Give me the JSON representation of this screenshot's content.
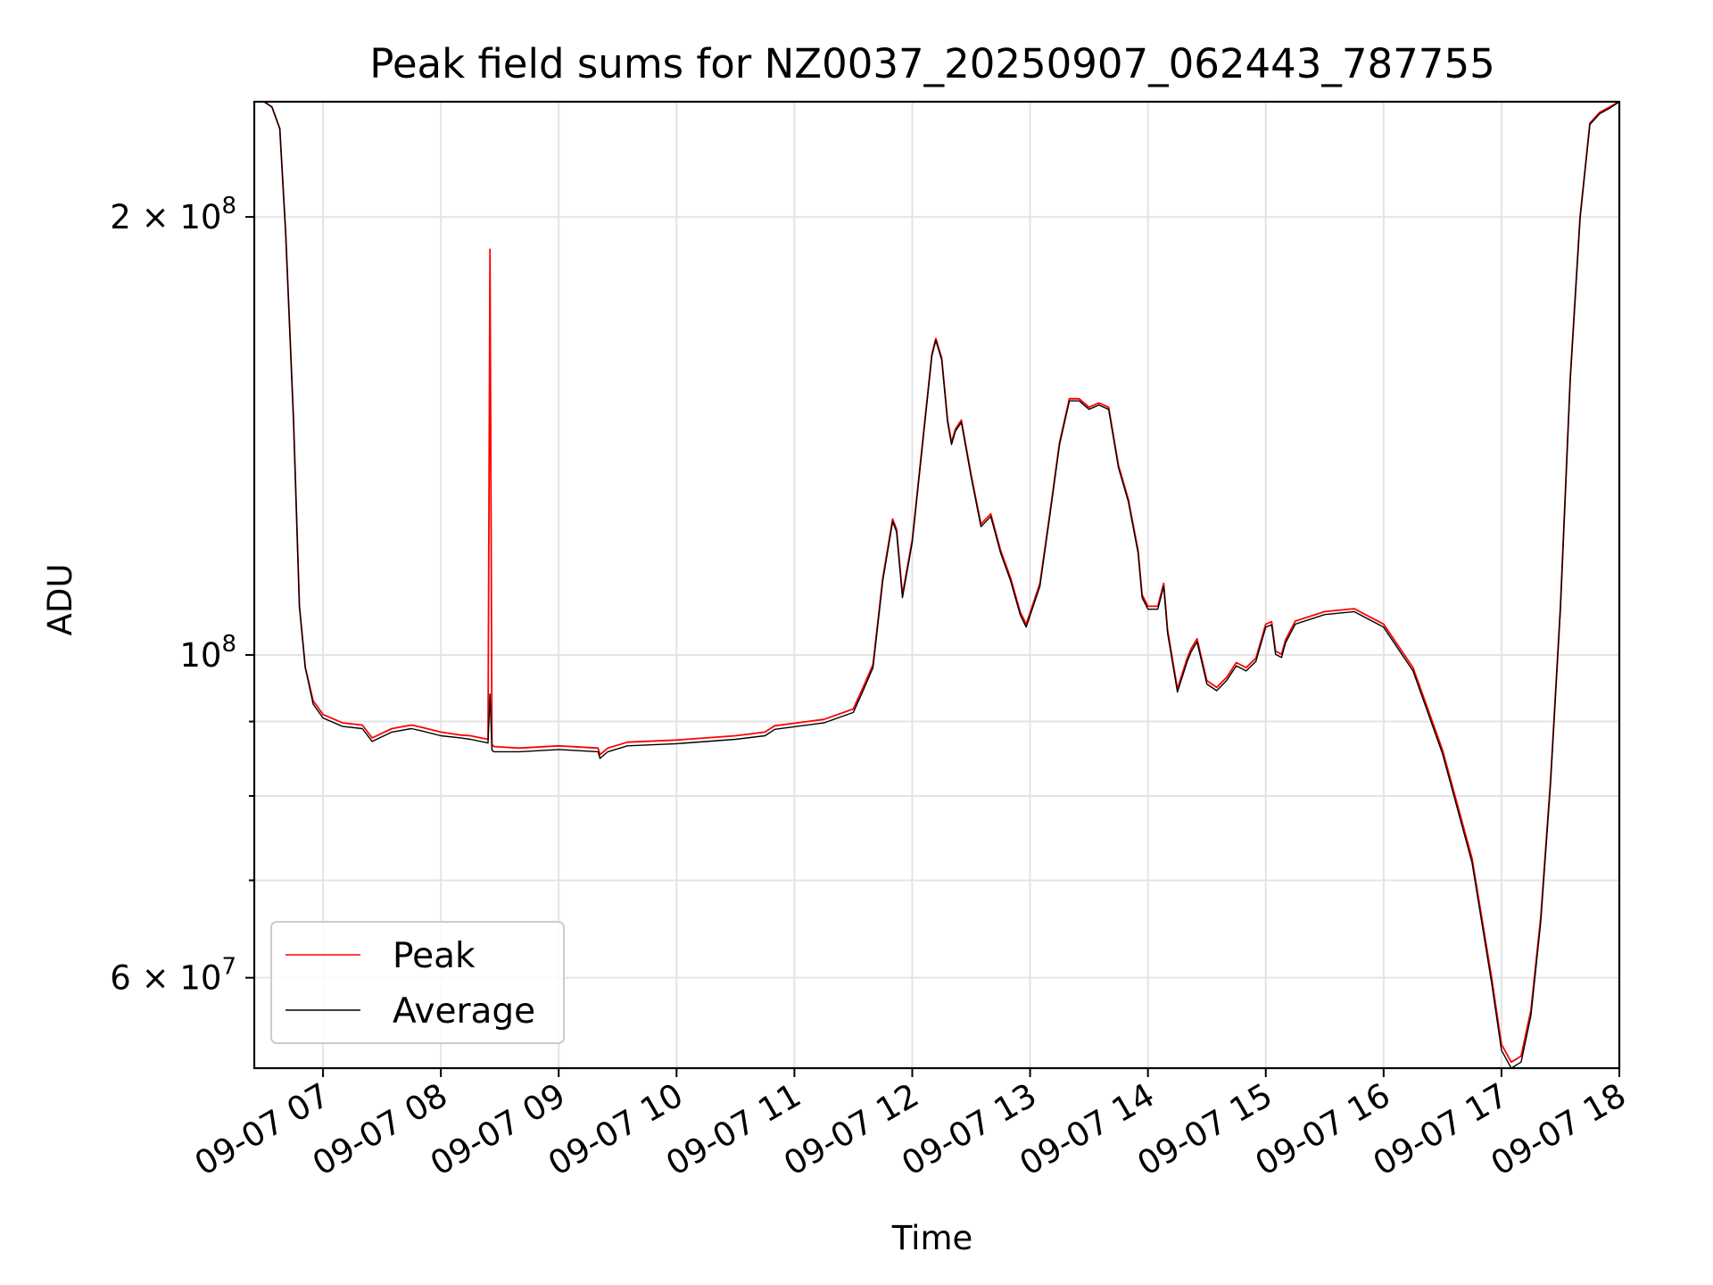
{
  "chart_data": {
    "type": "line",
    "title": "Peak field sums for NZ0037_20250907_062443_787755",
    "xlabel": "Time",
    "ylabel": "ADU",
    "yscale": "log",
    "ylim": [
      52000000,
      240000000
    ],
    "xlim": [
      "09-07 06:25",
      "09-07 18:00"
    ],
    "grid": true,
    "legend_position": "lower-left",
    "x_ticks": [
      "09-07 07",
      "09-07 08",
      "09-07 09",
      "09-07 10",
      "09-07 11",
      "09-07 12",
      "09-07 13",
      "09-07 14",
      "09-07 15",
      "09-07 16",
      "09-07 17",
      "09-07 18"
    ],
    "y_ticks": [
      {
        "value": 200000000,
        "mantissa": "2",
        "exponent": "8"
      },
      {
        "value": 100000000,
        "mantissa": "",
        "exponent": "8"
      },
      {
        "value": 60000000,
        "mantissa": "6",
        "exponent": "7"
      }
    ],
    "series": [
      {
        "name": "Peak",
        "color": "#ff0000",
        "x": [
          "09-07 06:25",
          "09-07 06:30",
          "09-07 06:34",
          "09-07 06:38",
          "09-07 06:41",
          "09-07 06:45",
          "09-07 06:48",
          "09-07 06:51",
          "09-07 06:55",
          "09-07 07:00",
          "09-07 07:10",
          "09-07 07:20",
          "09-07 07:25",
          "09-07 07:35",
          "09-07 07:45",
          "09-07 07:50",
          "09-07 08:00",
          "09-07 08:10",
          "09-07 08:15",
          "09-07 08:24",
          "09-07 08:25",
          "09-07 08:26",
          "09-07 08:27",
          "09-07 08:40",
          "09-07 09:00",
          "09-07 09:20",
          "09-07 09:21",
          "09-07 09:25",
          "09-07 09:35",
          "09-07 10:00",
          "09-07 10:30",
          "09-07 10:45",
          "09-07 10:50",
          "09-07 11:15",
          "09-07 11:30",
          "09-07 11:35",
          "09-07 11:40",
          "09-07 11:45",
          "09-07 11:50",
          "09-07 11:52",
          "09-07 11:55",
          "09-07 12:00",
          "09-07 12:10",
          "09-07 12:12",
          "09-07 12:15",
          "09-07 12:18",
          "09-07 12:20",
          "09-07 12:22",
          "09-07 12:25",
          "09-07 12:30",
          "09-07 12:35",
          "09-07 12:40",
          "09-07 12:45",
          "09-07 12:50",
          "09-07 12:55",
          "09-07 12:58",
          "09-07 13:05",
          "09-07 13:10",
          "09-07 13:15",
          "09-07 13:20",
          "09-07 13:25",
          "09-07 13:30",
          "09-07 13:35",
          "09-07 13:40",
          "09-07 13:45",
          "09-07 13:50",
          "09-07 13:55",
          "09-07 13:57",
          "09-07 14:00",
          "09-07 14:05",
          "09-07 14:08",
          "09-07 14:10",
          "09-07 14:15",
          "09-07 14:20",
          "09-07 14:22",
          "09-07 14:25",
          "09-07 14:30",
          "09-07 14:35",
          "09-07 14:40",
          "09-07 14:45",
          "09-07 14:50",
          "09-07 14:55",
          "09-07 15:00",
          "09-07 15:03",
          "09-07 15:05",
          "09-07 15:08",
          "09-07 15:10",
          "09-07 15:15",
          "09-07 15:30",
          "09-07 15:45",
          "09-07 16:00",
          "09-07 16:15",
          "09-07 16:30",
          "09-07 16:45",
          "09-07 16:55",
          "09-07 17:00",
          "09-07 17:05",
          "09-07 17:10",
          "09-07 17:15",
          "09-07 17:20",
          "09-07 17:25",
          "09-07 17:30",
          "09-07 17:35",
          "09-07 17:40",
          "09-07 17:45",
          "09-07 17:50",
          "09-07 17:55",
          "09-07 18:00"
        ],
        "y": [
          240000000,
          240000000,
          238000000,
          230000000,
          195000000,
          145000000,
          108000000,
          98000000,
          93000000,
          91000000,
          89800000,
          89500000,
          87700000,
          89000000,
          89500000,
          89200000,
          88500000,
          88100000,
          88000000,
          87500000,
          190000000,
          86800000,
          86500000,
          86300000,
          86600000,
          86300000,
          85400000,
          86300000,
          87100000,
          87400000,
          88000000,
          88500000,
          89400000,
          90300000,
          91800000,
          95000000,
          98500000,
          113000000,
          124000000,
          122000000,
          110000000,
          120000000,
          161000000,
          165000000,
          160000000,
          145000000,
          140000000,
          143000000,
          145000000,
          133000000,
          123000000,
          125000000,
          118000000,
          113000000,
          107000000,
          105000000,
          112000000,
          125000000,
          140000000,
          150000000,
          150000000,
          148000000,
          149000000,
          148000000,
          135000000,
          128000000,
          118000000,
          110000000,
          108000000,
          108000000,
          112000000,
          104000000,
          94800000,
          99500000,
          101000000,
          102600000,
          96000000,
          95000000,
          96500000,
          98800000,
          98000000,
          99500000,
          105000000,
          105400000,
          100600000,
          100100000,
          102400000,
          105500000,
          107100000,
          107600000,
          105000000,
          98000000,
          86000000,
          72500000,
          60000000,
          54000000,
          52500000,
          53000000,
          57000000,
          66000000,
          82000000,
          108000000,
          155000000,
          200000000,
          232000000,
          236000000,
          238000000,
          240000000
        ]
      },
      {
        "name": "Average",
        "color": "#000000",
        "x": [
          "09-07 06:25",
          "09-07 06:30",
          "09-07 06:34",
          "09-07 06:38",
          "09-07 06:41",
          "09-07 06:45",
          "09-07 06:48",
          "09-07 06:51",
          "09-07 06:55",
          "09-07 07:00",
          "09-07 07:10",
          "09-07 07:20",
          "09-07 07:25",
          "09-07 07:35",
          "09-07 07:45",
          "09-07 07:50",
          "09-07 08:00",
          "09-07 08:10",
          "09-07 08:15",
          "09-07 08:24",
          "09-07 08:25",
          "09-07 08:26",
          "09-07 08:27",
          "09-07 08:40",
          "09-07 09:00",
          "09-07 09:20",
          "09-07 09:21",
          "09-07 09:25",
          "09-07 09:35",
          "09-07 10:00",
          "09-07 10:30",
          "09-07 10:45",
          "09-07 10:50",
          "09-07 11:15",
          "09-07 11:30",
          "09-07 11:35",
          "09-07 11:40",
          "09-07 11:45",
          "09-07 11:50",
          "09-07 11:52",
          "09-07 11:55",
          "09-07 12:00",
          "09-07 12:10",
          "09-07 12:12",
          "09-07 12:15",
          "09-07 12:18",
          "09-07 12:20",
          "09-07 12:22",
          "09-07 12:25",
          "09-07 12:30",
          "09-07 12:35",
          "09-07 12:40",
          "09-07 12:45",
          "09-07 12:50",
          "09-07 12:55",
          "09-07 12:58",
          "09-07 13:05",
          "09-07 13:10",
          "09-07 13:15",
          "09-07 13:20",
          "09-07 13:25",
          "09-07 13:30",
          "09-07 13:35",
          "09-07 13:40",
          "09-07 13:45",
          "09-07 13:50",
          "09-07 13:55",
          "09-07 13:57",
          "09-07 14:00",
          "09-07 14:05",
          "09-07 14:08",
          "09-07 14:10",
          "09-07 14:15",
          "09-07 14:20",
          "09-07 14:22",
          "09-07 14:25",
          "09-07 14:30",
          "09-07 14:35",
          "09-07 14:40",
          "09-07 14:45",
          "09-07 14:50",
          "09-07 14:55",
          "09-07 15:00",
          "09-07 15:03",
          "09-07 15:05",
          "09-07 15:08",
          "09-07 15:10",
          "09-07 15:15",
          "09-07 15:30",
          "09-07 15:45",
          "09-07 16:00",
          "09-07 16:15",
          "09-07 16:30",
          "09-07 16:45",
          "09-07 16:55",
          "09-07 17:00",
          "09-07 17:05",
          "09-07 17:10",
          "09-07 17:15",
          "09-07 17:20",
          "09-07 17:25",
          "09-07 17:30",
          "09-07 17:35",
          "09-07 17:40",
          "09-07 17:45",
          "09-07 17:50",
          "09-07 17:55",
          "09-07 18:00"
        ],
        "y": [
          240000000,
          240000000,
          238000000,
          230000000,
          195000000,
          145000000,
          108000000,
          98000000,
          92500000,
          90500000,
          89300000,
          89000000,
          87200000,
          88500000,
          89000000,
          88700000,
          88000000,
          87700000,
          87500000,
          87000000,
          94000000,
          86000000,
          85800000,
          85800000,
          86100000,
          85800000,
          84900000,
          85800000,
          86600000,
          86900000,
          87500000,
          88000000,
          88900000,
          89800000,
          91300000,
          94500000,
          98000000,
          112500000,
          123500000,
          121500000,
          109500000,
          119500000,
          160500000,
          164500000,
          159500000,
          144500000,
          139500000,
          142500000,
          144500000,
          132500000,
          122500000,
          124500000,
          117500000,
          112500000,
          106500000,
          104500000,
          111500000,
          124500000,
          139500000,
          149500000,
          149500000,
          147500000,
          148500000,
          147500000,
          134500000,
          127500000,
          117500000,
          109500000,
          107500000,
          107500000,
          111500000,
          103500000,
          94300000,
          99000000,
          100500000,
          102100000,
          95500000,
          94500000,
          96000000,
          98300000,
          97500000,
          99000000,
          104500000,
          104900000,
          100100000,
          99600000,
          101900000,
          105000000,
          106600000,
          107100000,
          104500000,
          97500000,
          85500000,
          72000000,
          59500000,
          53500000,
          52000000,
          52500000,
          56500000,
          65500000,
          81500000,
          107500000,
          154500000,
          199500000,
          231500000,
          235500000,
          237500000,
          240000000
        ]
      }
    ]
  }
}
